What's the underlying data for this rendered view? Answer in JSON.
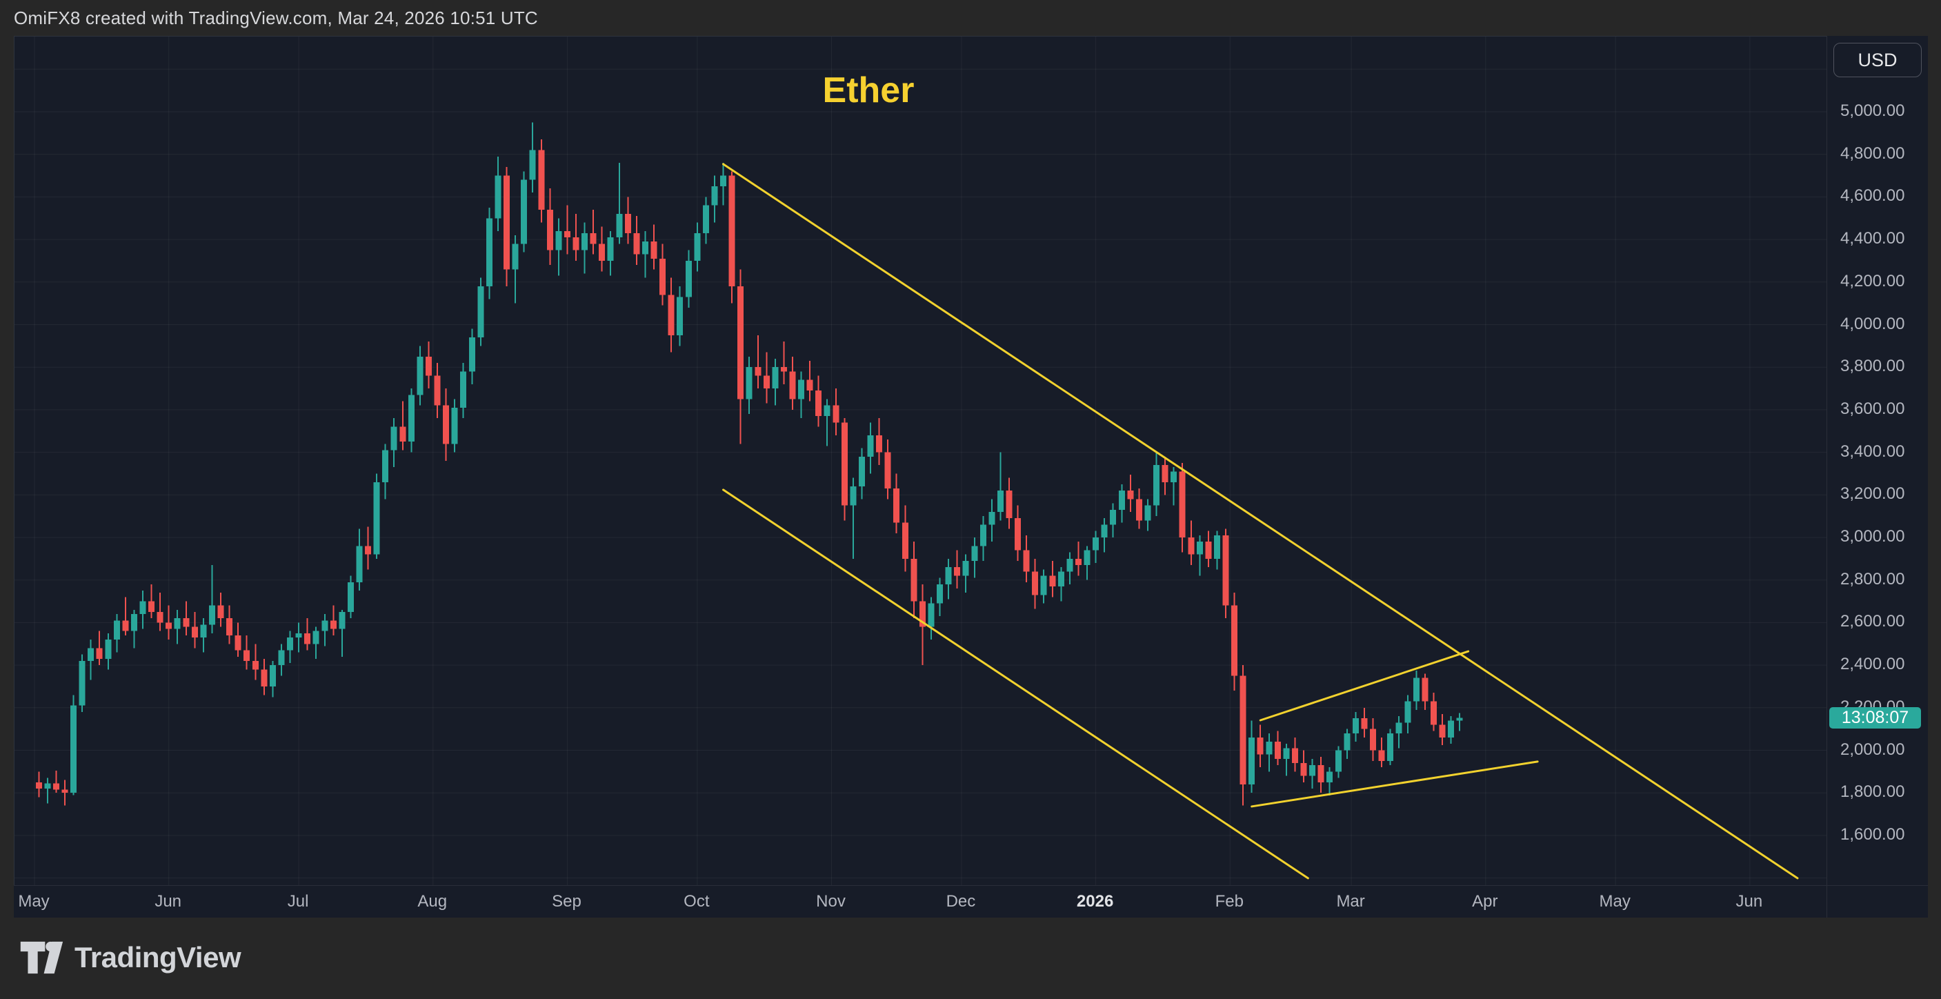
{
  "header": {
    "attribution": "OmiFX8 created with TradingView.com, Mar 24, 2026 10:51 UTC"
  },
  "chart": {
    "title": "Ether",
    "currency_button_label": "USD",
    "countdown": "13:08:07",
    "current_price": 2152,
    "colors": {
      "background_outer": "#272727",
      "background_plot": "#171c28",
      "grid": "rgba(255,255,255,0.055)",
      "up": "#2aa79b",
      "down": "#f0524f",
      "trendline": "#f2d22e",
      "axis_text": "#b4b7c0",
      "axis_text_bright": "#e2e3e6",
      "title": "#f6d130",
      "badge_bg": "#2aa99c",
      "badge_text": "#ffffff",
      "border": "#2a2e39"
    }
  },
  "chart_data": {
    "type": "candlestick",
    "symbol": "Ether",
    "quote_currency": "USD",
    "start_date": "2025-05-01",
    "days_per_candle": 2,
    "ylim": [
      1365,
      5415
    ],
    "grid": true,
    "y_axis_ticks": [
      {
        "value": 5000,
        "label": "5,000.00"
      },
      {
        "value": 4800,
        "label": "4,800.00"
      },
      {
        "value": 4600,
        "label": "4,600.00"
      },
      {
        "value": 4400,
        "label": "4,400.00"
      },
      {
        "value": 4200,
        "label": "4,200.00"
      },
      {
        "value": 4000,
        "label": "4,000.00"
      },
      {
        "value": 3800,
        "label": "3,800.00"
      },
      {
        "value": 3600,
        "label": "3,600.00"
      },
      {
        "value": 3400,
        "label": "3,400.00"
      },
      {
        "value": 3200,
        "label": "3,200.00"
      },
      {
        "value": 3000,
        "label": "3,000.00"
      },
      {
        "value": 2800,
        "label": "2,800.00"
      },
      {
        "value": 2600,
        "label": "2,600.00"
      },
      {
        "value": 2400,
        "label": "2,400.00"
      },
      {
        "value": 2200,
        "label": "2,200.00"
      },
      {
        "value": 2000,
        "label": "2,000.00"
      },
      {
        "value": 1800,
        "label": "1,800.00"
      },
      {
        "value": 1600,
        "label": "1,600.00"
      }
    ],
    "x_axis_ticks": [
      {
        "label": "May",
        "day": 0
      },
      {
        "label": "Jun",
        "day": 31
      },
      {
        "label": "Jul",
        "day": 61
      },
      {
        "label": "Aug",
        "day": 92
      },
      {
        "label": "Sep",
        "day": 123
      },
      {
        "label": "Oct",
        "day": 153
      },
      {
        "label": "Nov",
        "day": 184
      },
      {
        "label": "Dec",
        "day": 214
      },
      {
        "label": "2026",
        "day": 245,
        "bold": true
      },
      {
        "label": "Feb",
        "day": 276
      },
      {
        "label": "Mar",
        "day": 304
      },
      {
        "label": "Apr",
        "day": 335
      },
      {
        "label": "May",
        "day": 365
      },
      {
        "label": "Jun",
        "day": 396
      }
    ],
    "trendlines": [
      {
        "name": "descending-channel-upper",
        "from": {
          "day": 159,
          "price": 4754
        },
        "to": {
          "day": 407,
          "price": 1399
        }
      },
      {
        "name": "descending-channel-lower",
        "from": {
          "day": 159,
          "price": 3224
        },
        "to": {
          "day": 294,
          "price": 1399
        }
      },
      {
        "name": "rising-wedge-upper",
        "from": {
          "day": 283,
          "price": 2141
        },
        "to": {
          "day": 331,
          "price": 2465
        }
      },
      {
        "name": "rising-wedge-lower",
        "from": {
          "day": 281,
          "price": 1736
        },
        "to": {
          "day": 347,
          "price": 1947
        }
      }
    ],
    "ohlc": [
      [
        1850,
        1900,
        1780,
        1820
      ],
      [
        1820,
        1870,
        1750,
        1845
      ],
      [
        1845,
        1905,
        1800,
        1815
      ],
      [
        1815,
        1860,
        1740,
        1800
      ],
      [
        1800,
        2260,
        1790,
        2210
      ],
      [
        2210,
        2450,
        2180,
        2420
      ],
      [
        2420,
        2520,
        2330,
        2480
      ],
      [
        2480,
        2560,
        2400,
        2430
      ],
      [
        2430,
        2550,
        2380,
        2520
      ],
      [
        2520,
        2640,
        2460,
        2610
      ],
      [
        2610,
        2720,
        2540,
        2560
      ],
      [
        2560,
        2660,
        2480,
        2640
      ],
      [
        2640,
        2750,
        2570,
        2700
      ],
      [
        2700,
        2780,
        2620,
        2650
      ],
      [
        2650,
        2740,
        2560,
        2600
      ],
      [
        2600,
        2680,
        2520,
        2570
      ],
      [
        2570,
        2660,
        2500,
        2620
      ],
      [
        2620,
        2700,
        2540,
        2580
      ],
      [
        2580,
        2650,
        2480,
        2530
      ],
      [
        2530,
        2620,
        2460,
        2590
      ],
      [
        2590,
        2870,
        2550,
        2680
      ],
      [
        2680,
        2740,
        2580,
        2620
      ],
      [
        2620,
        2680,
        2500,
        2540
      ],
      [
        2540,
        2600,
        2440,
        2470
      ],
      [
        2470,
        2540,
        2380,
        2420
      ],
      [
        2420,
        2500,
        2330,
        2380
      ],
      [
        2380,
        2430,
        2260,
        2300
      ],
      [
        2300,
        2420,
        2250,
        2400
      ],
      [
        2400,
        2500,
        2350,
        2470
      ],
      [
        2470,
        2560,
        2410,
        2530
      ],
      [
        2530,
        2600,
        2460,
        2550
      ],
      [
        2550,
        2620,
        2470,
        2500
      ],
      [
        2500,
        2580,
        2430,
        2560
      ],
      [
        2560,
        2640,
        2490,
        2610
      ],
      [
        2610,
        2680,
        2540,
        2570
      ],
      [
        2570,
        2660,
        2440,
        2650
      ],
      [
        2650,
        2820,
        2620,
        2790
      ],
      [
        2790,
        3040,
        2750,
        2960
      ],
      [
        2960,
        3050,
        2850,
        2920
      ],
      [
        2920,
        3300,
        2900,
        3260
      ],
      [
        3260,
        3440,
        3180,
        3410
      ],
      [
        3410,
        3560,
        3330,
        3520
      ],
      [
        3520,
        3640,
        3410,
        3450
      ],
      [
        3450,
        3700,
        3400,
        3670
      ],
      [
        3670,
        3900,
        3620,
        3850
      ],
      [
        3850,
        3920,
        3700,
        3760
      ],
      [
        3760,
        3820,
        3560,
        3620
      ],
      [
        3620,
        3700,
        3360,
        3440
      ],
      [
        3440,
        3650,
        3400,
        3610
      ],
      [
        3610,
        3820,
        3560,
        3780
      ],
      [
        3780,
        3980,
        3720,
        3940
      ],
      [
        3940,
        4220,
        3900,
        4180
      ],
      [
        4180,
        4550,
        4120,
        4500
      ],
      [
        4500,
        4790,
        4440,
        4700
      ],
      [
        4700,
        4740,
        4180,
        4260
      ],
      [
        4260,
        4420,
        4100,
        4380
      ],
      [
        4380,
        4720,
        4340,
        4680
      ],
      [
        4680,
        4950,
        4620,
        4820
      ],
      [
        4820,
        4870,
        4480,
        4540
      ],
      [
        4540,
        4640,
        4280,
        4350
      ],
      [
        4350,
        4500,
        4230,
        4440
      ],
      [
        4440,
        4560,
        4330,
        4410
      ],
      [
        4410,
        4520,
        4300,
        4350
      ],
      [
        4350,
        4480,
        4240,
        4430
      ],
      [
        4430,
        4540,
        4330,
        4380
      ],
      [
        4380,
        4460,
        4250,
        4300
      ],
      [
        4300,
        4440,
        4230,
        4410
      ],
      [
        4410,
        4760,
        4380,
        4520
      ],
      [
        4520,
        4600,
        4380,
        4430
      ],
      [
        4430,
        4510,
        4280,
        4330
      ],
      [
        4330,
        4440,
        4220,
        4390
      ],
      [
        4390,
        4470,
        4260,
        4310
      ],
      [
        4310,
        4380,
        4090,
        4140
      ],
      [
        4140,
        4220,
        3870,
        3950
      ],
      [
        3950,
        4180,
        3900,
        4130
      ],
      [
        4130,
        4350,
        4080,
        4300
      ],
      [
        4300,
        4480,
        4250,
        4430
      ],
      [
        4430,
        4600,
        4380,
        4560
      ],
      [
        4560,
        4700,
        4480,
        4650
      ],
      [
        4650,
        4760,
        4560,
        4700
      ],
      [
        4700,
        4720,
        4100,
        4180
      ],
      [
        4180,
        4260,
        3440,
        3650
      ],
      [
        3650,
        3850,
        3580,
        3800
      ],
      [
        3800,
        3950,
        3700,
        3760
      ],
      [
        3760,
        3870,
        3630,
        3700
      ],
      [
        3700,
        3840,
        3620,
        3800
      ],
      [
        3800,
        3920,
        3720,
        3780
      ],
      [
        3780,
        3850,
        3600,
        3650
      ],
      [
        3650,
        3780,
        3560,
        3740
      ],
      [
        3740,
        3830,
        3640,
        3690
      ],
      [
        3690,
        3760,
        3520,
        3570
      ],
      [
        3570,
        3650,
        3430,
        3620
      ],
      [
        3620,
        3700,
        3480,
        3540
      ],
      [
        3540,
        3560,
        3080,
        3150
      ],
      [
        3150,
        3280,
        2900,
        3240
      ],
      [
        3240,
        3420,
        3180,
        3380
      ],
      [
        3380,
        3540,
        3300,
        3480
      ],
      [
        3480,
        3560,
        3340,
        3400
      ],
      [
        3400,
        3460,
        3180,
        3230
      ],
      [
        3230,
        3300,
        3020,
        3070
      ],
      [
        3070,
        3150,
        2840,
        2900
      ],
      [
        2900,
        2980,
        2620,
        2700
      ],
      [
        2700,
        2780,
        2400,
        2580
      ],
      [
        2580,
        2720,
        2520,
        2690
      ],
      [
        2690,
        2810,
        2630,
        2780
      ],
      [
        2780,
        2900,
        2710,
        2860
      ],
      [
        2860,
        2940,
        2760,
        2820
      ],
      [
        2820,
        2920,
        2740,
        2890
      ],
      [
        2890,
        3000,
        2810,
        2960
      ],
      [
        2960,
        3100,
        2890,
        3060
      ],
      [
        3060,
        3180,
        2980,
        3120
      ],
      [
        3120,
        3400,
        3080,
        3220
      ],
      [
        3220,
        3280,
        3040,
        3090
      ],
      [
        3090,
        3150,
        2890,
        2940
      ],
      [
        2940,
        3010,
        2790,
        2840
      ],
      [
        2840,
        2900,
        2665,
        2730
      ],
      [
        2730,
        2850,
        2690,
        2820
      ],
      [
        2820,
        2890,
        2720,
        2770
      ],
      [
        2770,
        2860,
        2700,
        2840
      ],
      [
        2840,
        2930,
        2780,
        2900
      ],
      [
        2900,
        2980,
        2820,
        2870
      ],
      [
        2870,
        2960,
        2800,
        2940
      ],
      [
        2940,
        3030,
        2880,
        3000
      ],
      [
        3000,
        3090,
        2930,
        3060
      ],
      [
        3060,
        3160,
        3000,
        3130
      ],
      [
        3130,
        3250,
        3070,
        3220
      ],
      [
        3220,
        3295,
        3120,
        3180
      ],
      [
        3180,
        3230,
        3040,
        3080
      ],
      [
        3080,
        3180,
        3030,
        3150
      ],
      [
        3150,
        3400,
        3100,
        3340
      ],
      [
        3340,
        3380,
        3200,
        3260
      ],
      [
        3260,
        3330,
        3150,
        3310
      ],
      [
        3310,
        3350,
        2930,
        3000
      ],
      [
        3000,
        3080,
        2870,
        2920
      ],
      [
        2920,
        3010,
        2820,
        2980
      ],
      [
        2980,
        3030,
        2860,
        2900
      ],
      [
        2900,
        3030,
        2850,
        3010
      ],
      [
        3010,
        3040,
        2620,
        2680
      ],
      [
        2680,
        2740,
        2280,
        2350
      ],
      [
        2350,
        2400,
        1740,
        1840
      ],
      [
        1840,
        2140,
        1800,
        2060
      ],
      [
        2060,
        2120,
        1920,
        1980
      ],
      [
        1980,
        2080,
        1900,
        2040
      ],
      [
        2040,
        2090,
        1930,
        1960
      ],
      [
        1960,
        2030,
        1880,
        2010
      ],
      [
        2010,
        2060,
        1900,
        1940
      ],
      [
        1940,
        2000,
        1850,
        1880
      ],
      [
        1880,
        1960,
        1820,
        1930
      ],
      [
        1930,
        1970,
        1800,
        1850
      ],
      [
        1850,
        1920,
        1788,
        1900
      ],
      [
        1900,
        2020,
        1870,
        2000
      ],
      [
        2000,
        2100,
        1960,
        2080
      ],
      [
        2080,
        2180,
        2040,
        2150
      ],
      [
        2150,
        2200,
        2060,
        2100
      ],
      [
        2100,
        2150,
        1950,
        2000
      ],
      [
        2000,
        2060,
        1920,
        1950
      ],
      [
        1950,
        2100,
        1930,
        2080
      ],
      [
        2080,
        2160,
        2010,
        2130
      ],
      [
        2130,
        2260,
        2080,
        2230
      ],
      [
        2230,
        2374,
        2190,
        2340
      ],
      [
        2340,
        2360,
        2190,
        2230
      ],
      [
        2230,
        2270,
        2090,
        2120
      ],
      [
        2120,
        2170,
        2024,
        2060
      ],
      [
        2060,
        2160,
        2030,
        2140
      ],
      [
        2140,
        2175,
        2090,
        2152
      ]
    ]
  },
  "footer": {
    "logo_text": "TradingView"
  }
}
